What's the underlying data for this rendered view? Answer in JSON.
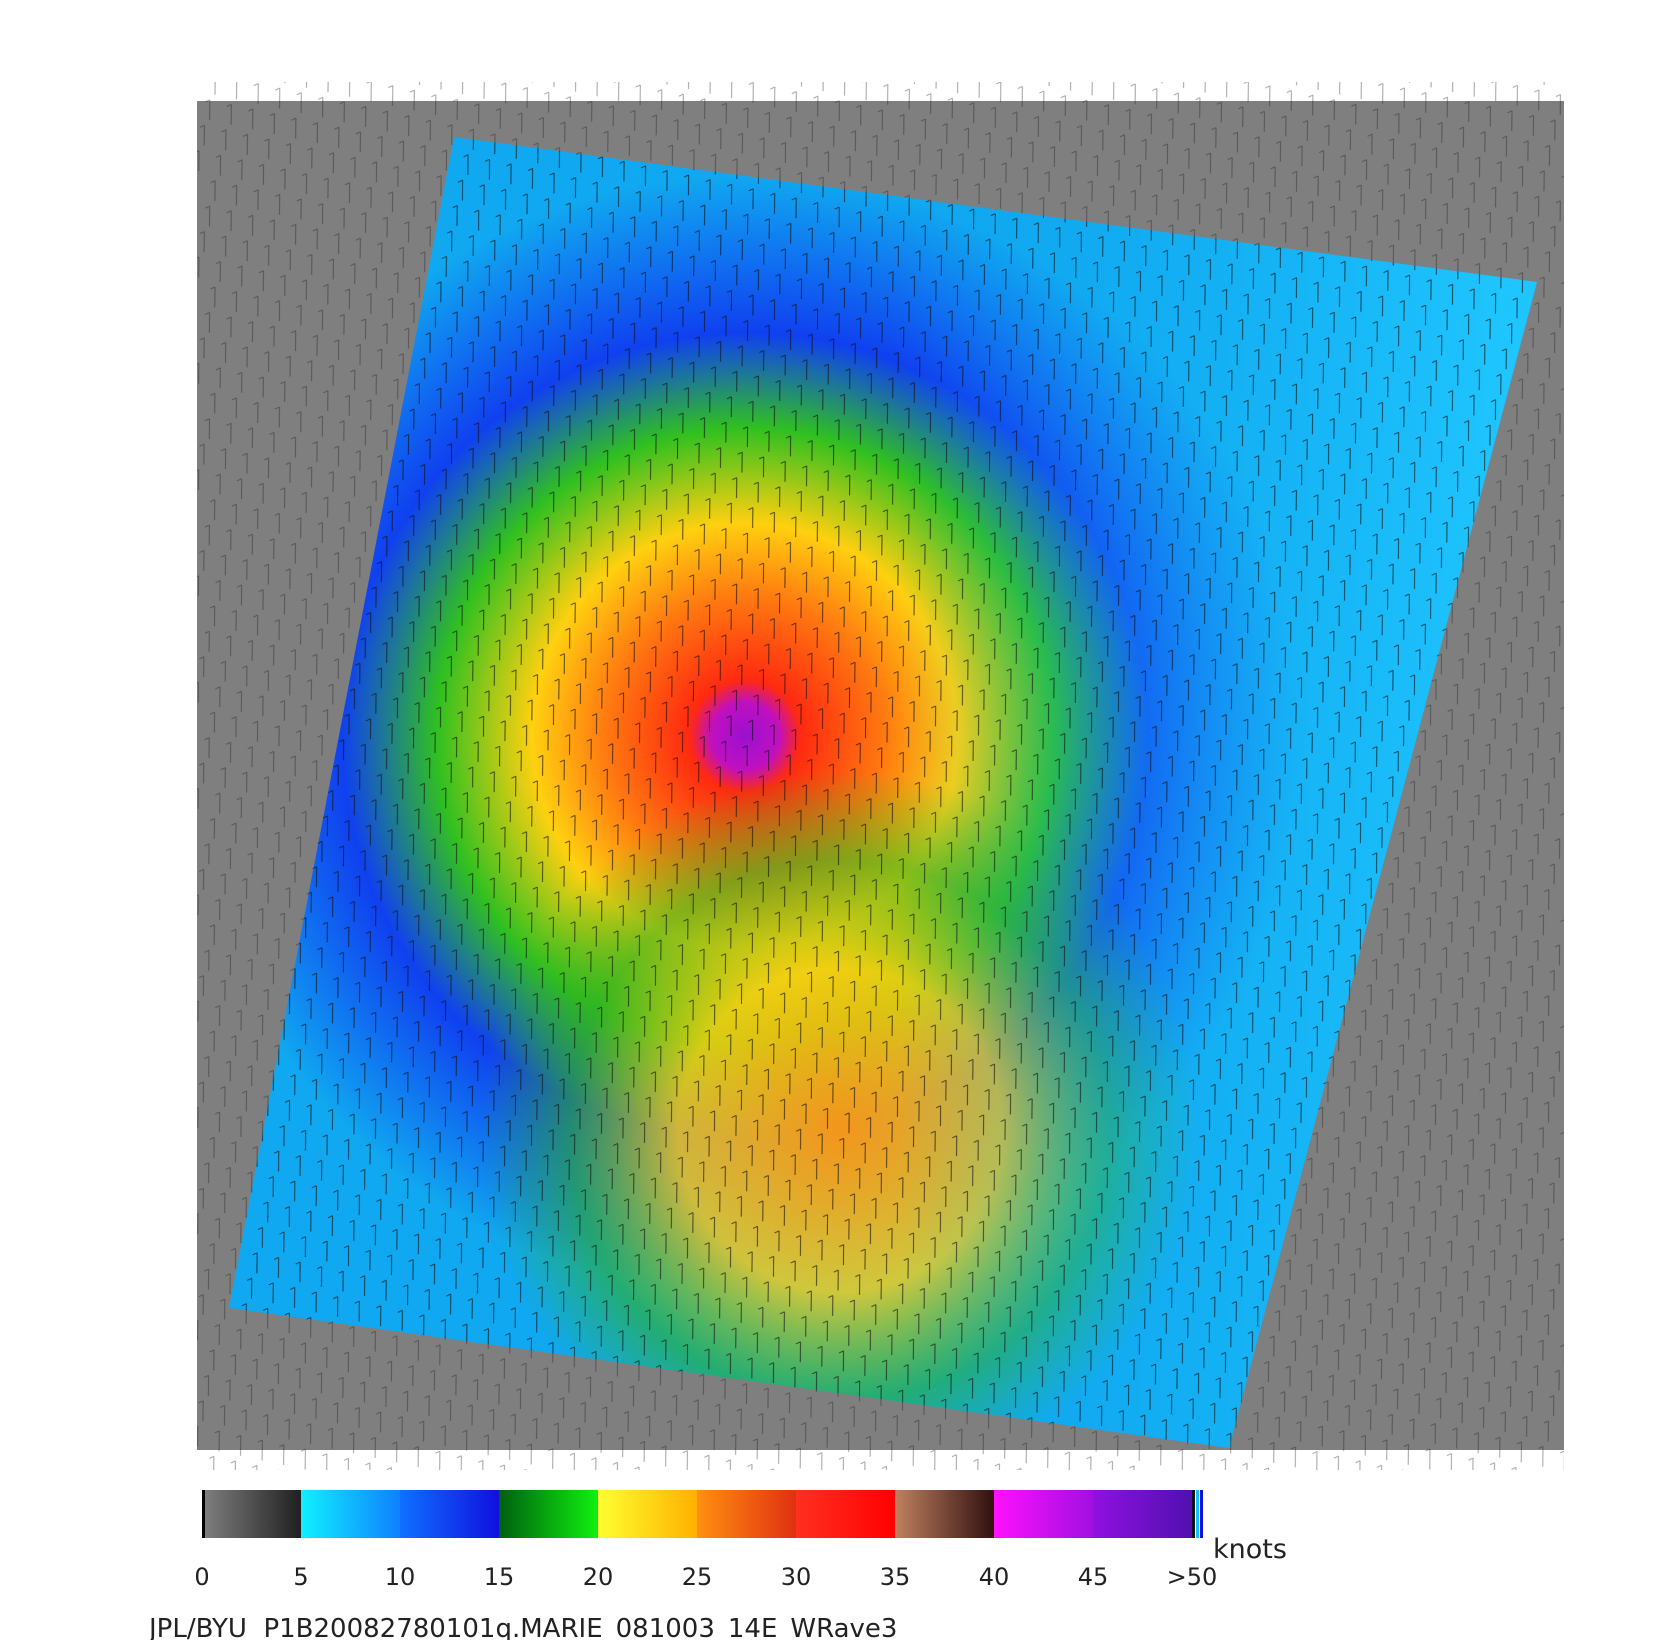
{
  "colorbar": {
    "ticks": [
      "0",
      "5",
      "10",
      "15",
      "20",
      "25",
      "30",
      "35",
      "40",
      "45",
      ">50"
    ],
    "unit": "knots"
  },
  "footer": "JPL/BYU  P1B20082780101q.MARIE_081003_14E_WRave3"
}
